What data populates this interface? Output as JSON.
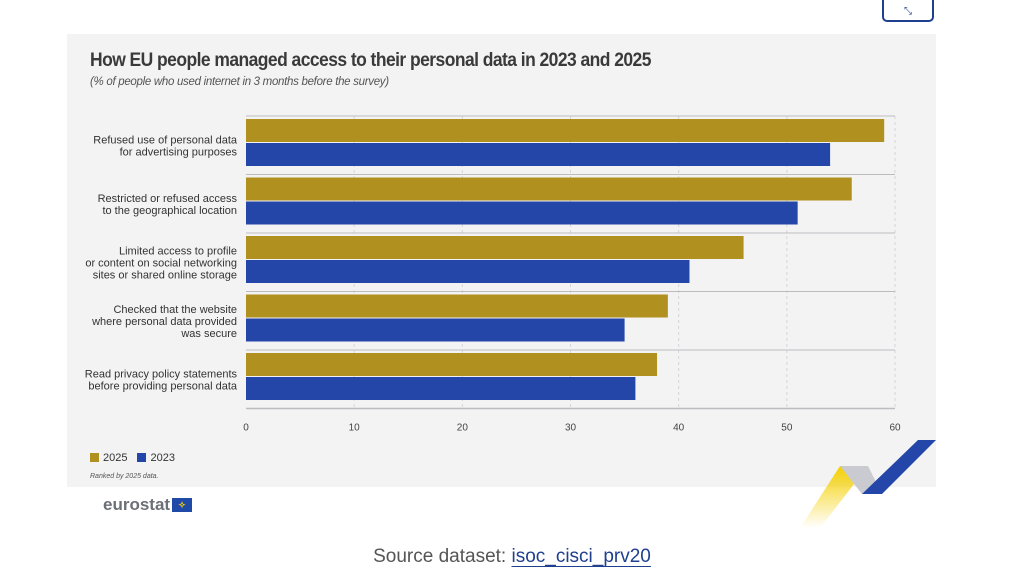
{
  "expand_button": {
    "icon": "expand-icon"
  },
  "chart_data": {
    "type": "bar",
    "orientation": "horizontal",
    "title": "How EU people managed access to their personal data in 2023 and 2025",
    "subtitle": "(% of people who used internet in 3 months before the survey)",
    "categories": [
      "Refused use of personal data\nfor advertising purposes",
      "Restricted or refused access\nto the geographical location",
      "Limited access to profile\nor content on social networking\nsites or shared online storage",
      "Checked that the website\nwhere personal data provided\nwas secure",
      "Read privacy policy statements\nbefore providing personal data"
    ],
    "series": [
      {
        "name": "2025",
        "color": "#b0901f",
        "values": [
          59,
          56,
          46,
          39,
          38
        ]
      },
      {
        "name": "2023",
        "color": "#2446a8",
        "values": [
          54,
          51,
          41,
          35,
          36
        ]
      }
    ],
    "xlim": [
      0,
      60
    ],
    "xticks": [
      0,
      10,
      20,
      30,
      40,
      50,
      60
    ],
    "grid": true,
    "legend": "bottom-left",
    "note": "Ranked by 2025 data."
  },
  "logo": {
    "text": "eurostat"
  },
  "source": {
    "label": "Source dataset:",
    "link": "isoc_cisci_prv20"
  }
}
